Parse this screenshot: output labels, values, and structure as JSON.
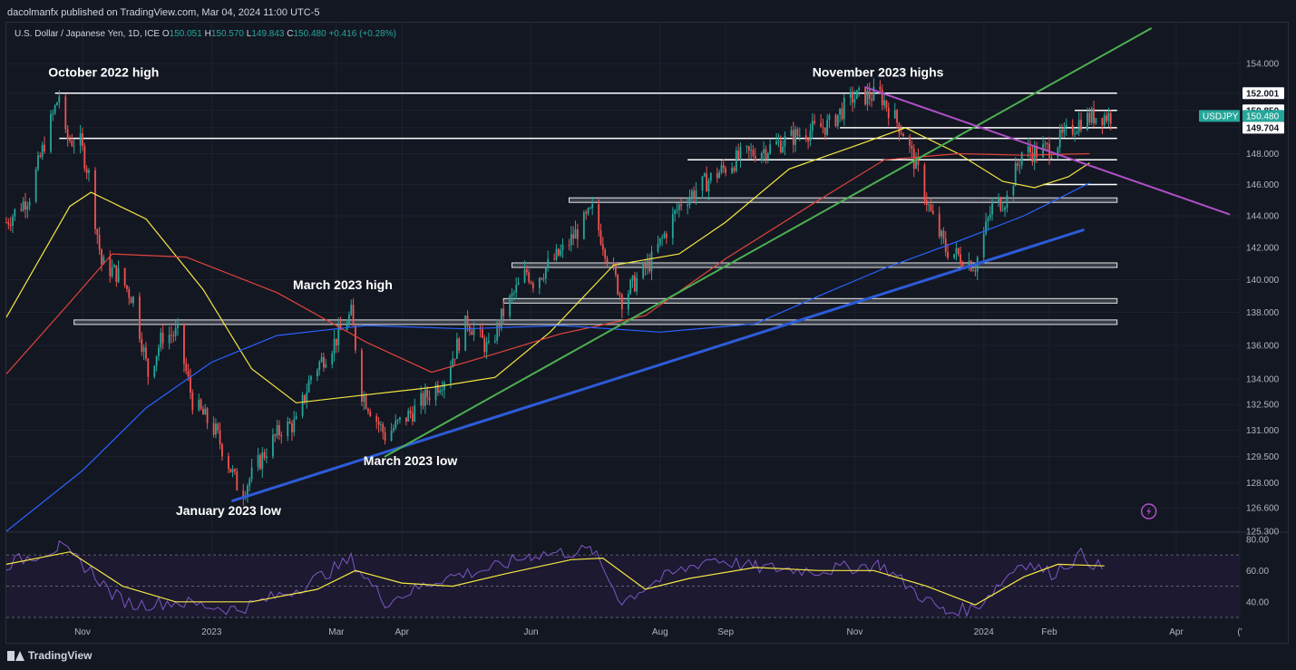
{
  "header": {
    "publisher": "dacolmanfx published on TradingView.com, Mar 04, 2024 11:00 UTC-5"
  },
  "legend": {
    "symbol": "U.S. Dollar / Japanese Yen, 1D, ICE",
    "open_label": "O",
    "open": "150.051",
    "high_label": "H",
    "high": "150.570",
    "low_label": "L",
    "low": "149.843",
    "close_label": "C",
    "close": "150.480",
    "change": "+0.416 (+0.28%)"
  },
  "footer": {
    "brand": "TradingView"
  },
  "colors": {
    "background": "#131722",
    "up": "#26a69a",
    "down": "#ef5350",
    "ma_yellow": "#f5e642",
    "ma_red": "#e2433c",
    "ma_blue": "#2962ff",
    "trend_green": "#4caf50",
    "trend_blue": "#2d5bd8",
    "trend_magenta": "#b04fc8",
    "rsi": "#7e57c2",
    "rsi_ma": "#f5e642"
  },
  "chart_data": {
    "type": "candlestick",
    "symbol": "USDJPY",
    "last_price": "150.480",
    "price_axis": {
      "scale": "log",
      "range": [
        125.3,
        156.8
      ],
      "ticks": [
        "154.000",
        "152.000",
        "150.850",
        "149.704",
        "148.000",
        "146.000",
        "144.000",
        "142.000",
        "140.000",
        "138.000",
        "136.000",
        "134.000",
        "132.500",
        "131.000",
        "129.500",
        "128.000",
        "126.600",
        "125.300"
      ]
    },
    "time_axis": {
      "range": [
        "2022-09-26",
        "2024-05-01"
      ],
      "tick_labels": [
        {
          "date": "2022-11-01",
          "label": "Nov"
        },
        {
          "date": "2023-01-01",
          "label": "2023"
        },
        {
          "date": "2023-03-01",
          "label": "Mar"
        },
        {
          "date": "2023-04-01",
          "label": "Apr"
        },
        {
          "date": "2023-06-01",
          "label": "Jun"
        },
        {
          "date": "2023-08-01",
          "label": "Aug"
        },
        {
          "date": "2023-09-01",
          "label": "Sep"
        },
        {
          "date": "2023-11-01",
          "label": "Nov"
        },
        {
          "date": "2024-01-01",
          "label": "2024"
        },
        {
          "date": "2024-02-01",
          "label": "Feb"
        },
        {
          "date": "2024-04-01",
          "label": "Apr"
        },
        {
          "date": "2024-05-01",
          "label": "('"
        }
      ]
    },
    "price_path": [
      [
        "2022-09-26",
        143.6
      ],
      [
        "2022-10-07",
        145.3
      ],
      [
        "2022-10-14",
        148.7
      ],
      [
        "2022-10-21",
        151.9
      ],
      [
        "2022-10-24",
        149.0
      ],
      [
        "2022-10-31",
        148.7
      ],
      [
        "2022-11-04",
        146.6
      ],
      [
        "2022-11-10",
        141.0
      ],
      [
        "2022-11-18",
        140.3
      ],
      [
        "2022-11-25",
        138.8
      ],
      [
        "2022-12-02",
        134.3
      ],
      [
        "2022-12-09",
        136.6
      ],
      [
        "2022-12-16",
        136.7
      ],
      [
        "2022-12-23",
        132.7
      ],
      [
        "2023-01-03",
        130.9
      ],
      [
        "2023-01-13",
        127.9
      ],
      [
        "2023-01-16",
        127.6
      ],
      [
        "2023-01-27",
        129.9
      ],
      [
        "2023-02-03",
        131.1
      ],
      [
        "2023-02-10",
        131.4
      ],
      [
        "2023-02-17",
        134.2
      ],
      [
        "2023-02-28",
        136.2
      ],
      [
        "2023-03-08",
        137.9
      ],
      [
        "2023-03-13",
        133.2
      ],
      [
        "2023-03-24",
        130.7
      ],
      [
        "2023-04-07",
        132.2
      ],
      [
        "2023-04-21",
        134.1
      ],
      [
        "2023-05-02",
        137.5
      ],
      [
        "2023-05-12",
        135.7
      ],
      [
        "2023-05-19",
        138.0
      ],
      [
        "2023-05-30",
        140.5
      ],
      [
        "2023-06-02",
        139.9
      ],
      [
        "2023-06-16",
        141.8
      ],
      [
        "2023-06-30",
        144.3
      ],
      [
        "2023-07-14",
        138.8
      ],
      [
        "2023-07-28",
        141.2
      ],
      [
        "2023-08-11",
        144.9
      ],
      [
        "2023-08-25",
        146.4
      ],
      [
        "2023-09-08",
        147.8
      ],
      [
        "2023-09-22",
        148.4
      ],
      [
        "2023-10-06",
        149.3
      ],
      [
        "2023-10-20",
        149.9
      ],
      [
        "2023-10-31",
        151.7
      ],
      [
        "2023-11-13",
        151.9
      ],
      [
        "2023-11-24",
        149.4
      ],
      [
        "2023-12-01",
        146.8
      ],
      [
        "2023-12-07",
        144.1
      ],
      [
        "2023-12-14",
        141.9
      ],
      [
        "2023-12-28",
        140.9
      ],
      [
        "2024-01-05",
        144.6
      ],
      [
        "2024-01-12",
        145.1
      ],
      [
        "2024-01-19",
        148.1
      ],
      [
        "2024-01-26",
        148.1
      ],
      [
        "2024-02-02",
        148.4
      ],
      [
        "2024-02-09",
        149.3
      ],
      [
        "2024-02-16",
        150.2
      ],
      [
        "2024-02-23",
        150.5
      ],
      [
        "2024-03-04",
        150.48
      ]
    ],
    "moving_averages": [
      {
        "color": "#f5e642",
        "points": [
          [
            "2022-09-26",
            137.7
          ],
          [
            "2022-10-26",
            144.6
          ],
          [
            "2022-11-05",
            145.5
          ],
          [
            "2022-12-01",
            143.8
          ],
          [
            "2022-12-28",
            139.4
          ],
          [
            "2023-01-20",
            134.6
          ],
          [
            "2023-02-10",
            132.6
          ],
          [
            "2023-03-10",
            133.0
          ],
          [
            "2023-04-15",
            133.5
          ],
          [
            "2023-05-15",
            134.1
          ],
          [
            "2023-06-10",
            136.8
          ],
          [
            "2023-07-10",
            140.9
          ],
          [
            "2023-08-10",
            141.6
          ],
          [
            "2023-09-01",
            143.6
          ],
          [
            "2023-10-01",
            147.0
          ],
          [
            "2023-11-01",
            148.5
          ],
          [
            "2023-11-25",
            149.7
          ],
          [
            "2023-12-20",
            148.0
          ],
          [
            "2024-01-10",
            146.2
          ],
          [
            "2024-01-25",
            145.8
          ],
          [
            "2024-02-10",
            146.5
          ],
          [
            "2024-02-20",
            147.4
          ]
        ]
      },
      {
        "color": "#e2433c",
        "points": [
          [
            "2022-09-26",
            134.3
          ],
          [
            "2022-10-26",
            138.6
          ],
          [
            "2022-11-15",
            141.6
          ],
          [
            "2022-12-20",
            141.4
          ],
          [
            "2023-02-01",
            139.2
          ],
          [
            "2023-03-15",
            136.2
          ],
          [
            "2023-04-15",
            134.4
          ],
          [
            "2023-05-15",
            135.5
          ],
          [
            "2023-06-15",
            136.7
          ],
          [
            "2023-07-25",
            137.8
          ],
          [
            "2023-09-01",
            141.3
          ],
          [
            "2023-10-15",
            145.0
          ],
          [
            "2023-11-15",
            147.6
          ],
          [
            "2023-12-20",
            148.0
          ],
          [
            "2024-01-20",
            147.9
          ],
          [
            "2024-02-20",
            148.0
          ]
        ]
      },
      {
        "color": "#2962ff",
        "points": [
          [
            "2022-09-26",
            125.3
          ],
          [
            "2022-11-01",
            128.7
          ],
          [
            "2022-12-01",
            132.3
          ],
          [
            "2023-01-01",
            135.0
          ],
          [
            "2023-02-01",
            136.6
          ],
          [
            "2023-03-15",
            137.2
          ],
          [
            "2023-05-01",
            137.0
          ],
          [
            "2023-06-15",
            137.2
          ],
          [
            "2023-08-01",
            136.8
          ],
          [
            "2023-09-15",
            137.3
          ],
          [
            "2023-10-15",
            139.0
          ],
          [
            "2023-11-15",
            140.7
          ],
          [
            "2023-12-20",
            142.4
          ],
          [
            "2024-01-20",
            144.0
          ],
          [
            "2024-02-20",
            146.1
          ]
        ]
      }
    ],
    "horizontal_levels": [
      {
        "price": 152.0,
        "from": "2022-10-19",
        "to": "2024-03-04",
        "style": "line"
      },
      {
        "price": 150.85,
        "from": "2024-02-13",
        "to": "2024-03-04",
        "style": "line"
      },
      {
        "price": 149.704,
        "from": "2023-10-25",
        "to": "2024-03-04",
        "style": "line"
      },
      {
        "price": 149.0,
        "from": "2022-10-21",
        "to": "2024-03-04",
        "style": "line"
      },
      {
        "price": 147.6,
        "from": "2023-08-14",
        "to": "2024-03-04",
        "style": "line"
      },
      {
        "price": 146.0,
        "from": "2024-01-29",
        "to": "2024-03-04",
        "style": "line"
      },
      {
        "price": 145.0,
        "from": "2023-06-19",
        "to": "2024-03-04",
        "style": "band"
      },
      {
        "price": 140.9,
        "from": "2023-05-23",
        "to": "2024-03-04",
        "style": "band"
      },
      {
        "price": 138.7,
        "from": "2023-05-19",
        "to": "2024-03-04",
        "style": "band"
      },
      {
        "price": 137.4,
        "from": "2022-10-28",
        "to": "2024-03-04",
        "style": "band"
      }
    ],
    "trendlines": [
      {
        "color": "#2d5bd8",
        "from": [
          "2023-01-11",
          127.0
        ],
        "to": [
          "2024-02-17",
          143.1
        ],
        "width": 3
      },
      {
        "color": "#4caf50",
        "from": [
          "2023-03-24",
          129.5
        ],
        "to": [
          "2024-03-20",
          156.4
        ],
        "width": 2
      },
      {
        "color": "#b04fc8",
        "from": [
          "2023-11-06",
          152.4
        ],
        "to": [
          "2024-04-26",
          144.1
        ],
        "width": 2
      }
    ],
    "annotations": [
      {
        "text": "October 2022 high",
        "date": "2022-11-11",
        "price": 153.1
      },
      {
        "text": "November 2023 highs",
        "date": "2023-11-12",
        "price": 153.1
      },
      {
        "text": "March 2023 high",
        "date": "2023-03-04",
        "price": 139.4
      },
      {
        "text": "March 2023 low",
        "date": "2023-04-05",
        "price": 129.0
      },
      {
        "text": "January 2023 low",
        "date": "2023-01-09",
        "price": 126.2
      }
    ],
    "tags": [
      {
        "text": "152.001",
        "style": "white",
        "price": 152.0
      },
      {
        "text": "150.850",
        "style": "white",
        "price": 150.85
      },
      {
        "text": "150.480",
        "style": "green",
        "price": 150.48
      },
      {
        "text": "149.704",
        "style": "white",
        "price": 149.704
      }
    ],
    "rsi": {
      "range": [
        30,
        84
      ],
      "ticks": [
        "80.00",
        "60.00",
        "40.00"
      ],
      "levels": [
        70,
        50,
        30
      ],
      "rsi_path": [
        [
          "2022-09-26",
          64
        ],
        [
          "2022-10-21",
          75
        ],
        [
          "2022-11-05",
          60
        ],
        [
          "2022-11-15",
          45
        ],
        [
          "2022-11-25",
          38
        ],
        [
          "2022-12-15",
          40
        ],
        [
          "2023-01-13",
          35
        ],
        [
          "2023-02-10",
          48
        ],
        [
          "2023-03-08",
          67
        ],
        [
          "2023-03-24",
          40
        ],
        [
          "2023-04-20",
          55
        ],
        [
          "2023-05-15",
          62
        ],
        [
          "2023-06-01",
          70
        ],
        [
          "2023-06-30",
          73
        ],
        [
          "2023-07-14",
          40
        ],
        [
          "2023-07-28",
          52
        ],
        [
          "2023-08-25",
          68
        ],
        [
          "2023-09-15",
          62
        ],
        [
          "2023-10-15",
          60
        ],
        [
          "2023-11-13",
          64
        ],
        [
          "2023-12-01",
          45
        ],
        [
          "2023-12-14",
          33
        ],
        [
          "2023-12-28",
          36
        ],
        [
          "2024-01-19",
          66
        ],
        [
          "2024-02-02",
          58
        ],
        [
          "2024-02-16",
          70
        ],
        [
          "2024-02-27",
          60
        ]
      ],
      "ma_path": [
        [
          "2022-09-26",
          64
        ],
        [
          "2022-10-26",
          72
        ],
        [
          "2022-11-20",
          50
        ],
        [
          "2022-12-15",
          40
        ],
        [
          "2023-01-20",
          40
        ],
        [
          "2023-02-20",
          48
        ],
        [
          "2023-03-10",
          60
        ],
        [
          "2023-04-01",
          52
        ],
        [
          "2023-04-25",
          50
        ],
        [
          "2023-05-20",
          58
        ],
        [
          "2023-06-20",
          67
        ],
        [
          "2023-07-05",
          68
        ],
        [
          "2023-07-25",
          48
        ],
        [
          "2023-08-15",
          55
        ],
        [
          "2023-09-15",
          62
        ],
        [
          "2023-10-15",
          60
        ],
        [
          "2023-11-10",
          60
        ],
        [
          "2023-12-05",
          50
        ],
        [
          "2023-12-28",
          38
        ],
        [
          "2024-01-20",
          56
        ],
        [
          "2024-02-05",
          64
        ],
        [
          "2024-02-27",
          63
        ]
      ]
    },
    "last_marker": {
      "date": "2024-03-19",
      "price": 125.8,
      "icon": "lightning-icon"
    }
  }
}
